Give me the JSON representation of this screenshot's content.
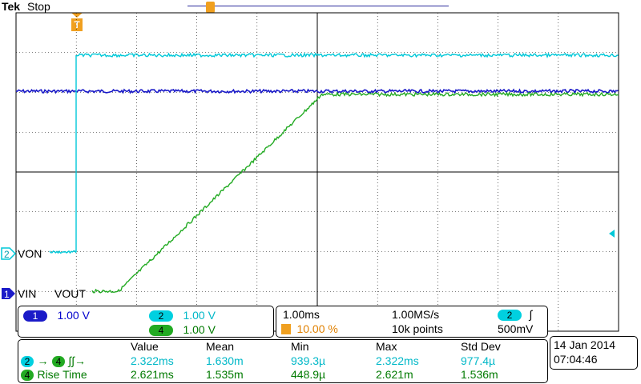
{
  "header": {
    "brand": "Tek",
    "state": "Stop",
    "trigger_marker": "T"
  },
  "channels": {
    "ch2": {
      "num": "2",
      "label": "VON",
      "color": "#00c8d8"
    },
    "ch1": {
      "num": "1",
      "label": "VIN",
      "color": "#1a1ac8"
    },
    "ch4": {
      "num": "4",
      "label": "VOUT",
      "color": "#22aa22"
    }
  },
  "vertical": {
    "ch1": {
      "num": "1",
      "scale": "1.00 V"
    },
    "ch2": {
      "num": "2",
      "scale": "1.00 V"
    },
    "ch4": {
      "num": "4",
      "scale": "1.00 V"
    }
  },
  "horizontal": {
    "timebase": "1.00ms",
    "sample_rate": "1.00MS/s",
    "trigger_pos": "10.00 %",
    "record": "10k points",
    "trig_src": "2",
    "trig_slope": "∫",
    "trig_level": "500mV"
  },
  "measurements": {
    "headers": [
      "Value",
      "Mean",
      "Min",
      "Max",
      "Std Dev"
    ],
    "rows": [
      {
        "label": "→",
        "src_a": "2",
        "src_b": "4",
        "edges": "∫∫→",
        "value": "2.322ms",
        "mean": "1.630m",
        "min": "939.3µ",
        "max": "2.322ms",
        "std": "977.4µ"
      },
      {
        "label": "Rise Time",
        "src_a": "4",
        "value": "2.621ms",
        "mean": "1.535m",
        "min": "448.9µ",
        "max": "2.621m",
        "std": "1.536m"
      }
    ]
  },
  "datetime": {
    "date": "14 Jan  2014",
    "time": "07:04:46"
  }
}
